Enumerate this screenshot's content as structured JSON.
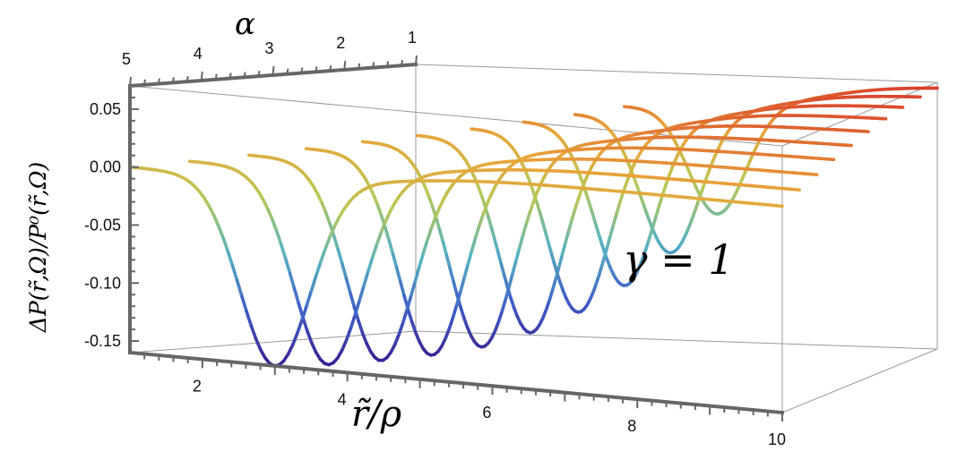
{
  "chart_data": {
    "type": "line",
    "subtype": "3d-surface-slices",
    "title": "",
    "annotation": "γ = 1",
    "axes": {
      "x": {
        "label": "r̃/ρ",
        "range": [
          1,
          10
        ],
        "ticks": [
          2,
          4,
          6,
          8,
          10
        ]
      },
      "y": {
        "label": "α",
        "range": [
          1,
          5
        ],
        "ticks": [
          5,
          4,
          3,
          2,
          1
        ]
      },
      "z": {
        "label": "ΔP(r̃,Ω)/P⁰(r̃,Ω)",
        "range": [
          -0.16,
          0.07
        ],
        "ticks": [
          "0.05",
          "0.00",
          "-0.05",
          "-0.10",
          "-0.15"
        ]
      }
    },
    "colormap": [
      "#3a1f8f",
      "#3f5fc8",
      "#57b3c0",
      "#b8c957",
      "#e8a53a",
      "#d8342a"
    ],
    "series_note": "Ten curves, one per alpha value from 5 (front) to 1 (back)",
    "series": [
      {
        "alpha": 5.0,
        "r_min": 1.0,
        "r_dip": 3.0,
        "z_plateau": 0.0,
        "z_min": -0.16,
        "z_end": 0.018
      },
      {
        "alpha": 4.56,
        "r_min": 1.4,
        "r_dip": 3.35,
        "z_plateau": 0.005,
        "z_min": -0.16,
        "z_end": 0.026
      },
      {
        "alpha": 4.11,
        "r_min": 1.8,
        "r_dip": 3.7,
        "z_plateau": 0.01,
        "z_min": -0.158,
        "z_end": 0.033
      },
      {
        "alpha": 3.67,
        "r_min": 2.2,
        "r_dip": 4.05,
        "z_plateau": 0.015,
        "z_min": -0.155,
        "z_end": 0.04
      },
      {
        "alpha": 3.22,
        "r_min": 2.6,
        "r_dip": 4.4,
        "z_plateau": 0.02,
        "z_min": -0.15,
        "z_end": 0.046
      },
      {
        "alpha": 2.78,
        "r_min": 3.0,
        "r_dip": 4.75,
        "z_plateau": 0.024,
        "z_min": -0.14,
        "z_end": 0.052
      },
      {
        "alpha": 2.33,
        "r_min": 3.4,
        "r_dip": 5.1,
        "z_plateau": 0.028,
        "z_min": -0.125,
        "z_end": 0.057
      },
      {
        "alpha": 1.89,
        "r_min": 3.8,
        "r_dip": 5.45,
        "z_plateau": 0.032,
        "z_min": -0.105,
        "z_end": 0.061
      },
      {
        "alpha": 1.44,
        "r_min": 4.2,
        "r_dip": 5.8,
        "z_plateau": 0.036,
        "z_min": -0.08,
        "z_end": 0.064
      },
      {
        "alpha": 1.0,
        "r_min": 4.6,
        "r_dip": 6.2,
        "z_plateau": 0.04,
        "z_min": -0.05,
        "z_end": 0.066
      }
    ]
  }
}
